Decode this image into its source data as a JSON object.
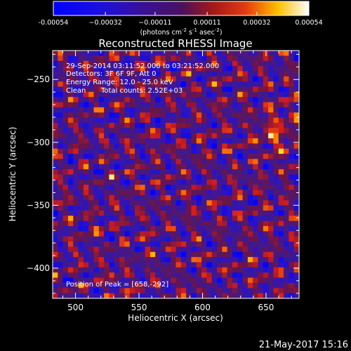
{
  "chart_data": {
    "type": "heatmap",
    "title": "Reconstructed RHESSI Image",
    "xlabel": "Heliocentric X (arcsec)",
    "ylabel": "Heliocentric Y (arcsec)",
    "xlim": [
      482,
      676
    ],
    "ylim": [
      -424,
      -227
    ],
    "xticks": [
      500,
      550,
      600,
      650
    ],
    "yticks": [
      -250,
      -300,
      -350,
      -400
    ],
    "grid": false,
    "colorbar": {
      "position": "top",
      "range": [
        -0.00054,
        0.00054
      ],
      "tick_values": [
        -0.00054,
        -0.00032,
        -0.00011,
        0.00011,
        0.00032,
        0.00054
      ],
      "tick_labels": [
        "-0.00054",
        "−0.00032",
        "−0.00011",
        "0.00011",
        "0.00032",
        "0.00054"
      ],
      "units_main": "(photons cm",
      "units_exp1": "-2",
      "units_mid1": " s",
      "units_exp2": "-1",
      "units_mid2": " asec",
      "units_exp3": "-2",
      "units_end": ")"
    },
    "colors": {
      "low": "#0000ff",
      "mid": "#3b1070",
      "high_red": "#d42020",
      "high_yellow": "#ffd400",
      "max": "#ffffff"
    },
    "annotations": {
      "time_range": "29-Sep-2014 03:11:52.000 to 03:21:52.000",
      "detectors": "Detectors: 3F 6F 9F, Att 0",
      "energy": "Energy Range: 12.0 - 25.0 keV",
      "method": "Clean",
      "counts": "Total counts: 2.52E+03",
      "peak": "Position of Peak = [658,-292]"
    },
    "peak_position": [
      658,
      -292
    ],
    "timestamp": "21-May-2017 15:16"
  }
}
